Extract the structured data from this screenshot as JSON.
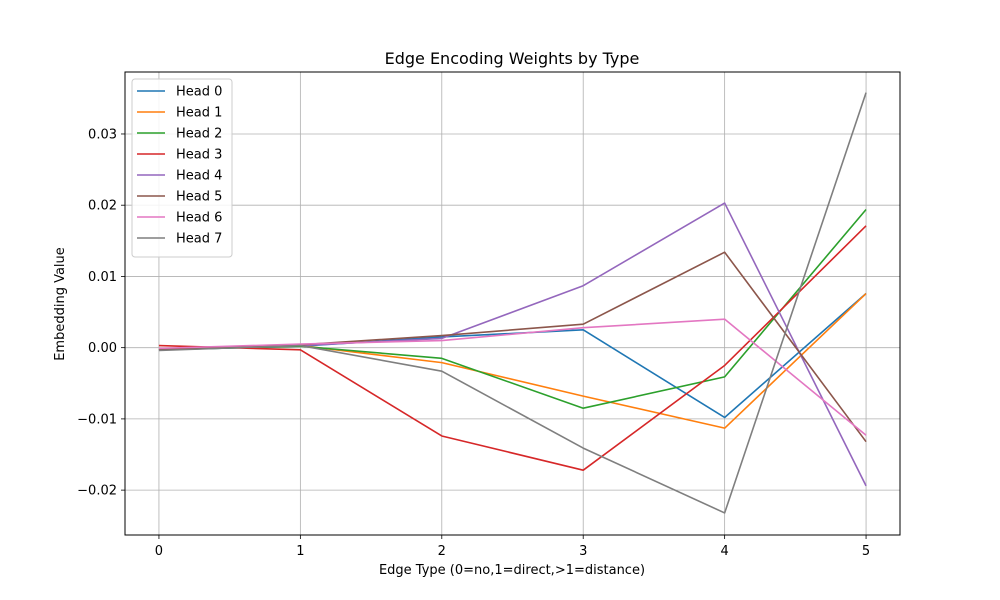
{
  "chart_data": {
    "type": "line",
    "title": "Edge Encoding Weights by Type",
    "xlabel": "Edge Type (0=no,1=direct,>1=distance)",
    "ylabel": "Embedding Value",
    "x": [
      0,
      1,
      2,
      3,
      4,
      5
    ],
    "x_ticks": [
      "0",
      "1",
      "2",
      "3",
      "4",
      "5"
    ],
    "y_ticks": [
      -0.02,
      -0.01,
      0.0,
      0.01,
      0.02,
      0.03
    ],
    "y_tick_labels": [
      "−0.02",
      "−0.01",
      "0.00",
      "0.01",
      "0.02",
      "0.03"
    ],
    "xlim": [
      -0.24,
      5.24
    ],
    "ylim": [
      -0.0263,
      0.0387
    ],
    "grid": true,
    "legend_position": "top-left",
    "series": [
      {
        "name": "Head 0",
        "color": "#1f77b4",
        "values": [
          -0.0003,
          0.0002,
          0.0015,
          0.0025,
          -0.0098,
          0.0076
        ]
      },
      {
        "name": "Head 1",
        "color": "#ff7f0e",
        "values": [
          -0.0002,
          0.0003,
          -0.0021,
          -0.0068,
          -0.0113,
          0.0076
        ]
      },
      {
        "name": "Head 2",
        "color": "#2ca02c",
        "values": [
          -0.0003,
          0.0002,
          -0.0015,
          -0.0085,
          -0.0041,
          0.0194
        ]
      },
      {
        "name": "Head 3",
        "color": "#d62728",
        "values": [
          0.0003,
          -0.0003,
          -0.0124,
          -0.0172,
          -0.0025,
          0.0171
        ]
      },
      {
        "name": "Head 4",
        "color": "#9467bd",
        "values": [
          -0.0003,
          0.0003,
          0.0013,
          0.0087,
          0.0203,
          -0.0194
        ]
      },
      {
        "name": "Head 5",
        "color": "#8c564b",
        "values": [
          -0.0003,
          0.0004,
          0.0017,
          0.0033,
          0.0134,
          -0.0132
        ]
      },
      {
        "name": "Head 6",
        "color": "#e377c2",
        "values": [
          -0.0001,
          0.0005,
          0.001,
          0.0028,
          0.004,
          -0.0123
        ]
      },
      {
        "name": "Head 7",
        "color": "#7f7f7f",
        "values": [
          -0.0004,
          0.0003,
          -0.0033,
          -0.0141,
          -0.0232,
          0.0358
        ]
      }
    ]
  }
}
